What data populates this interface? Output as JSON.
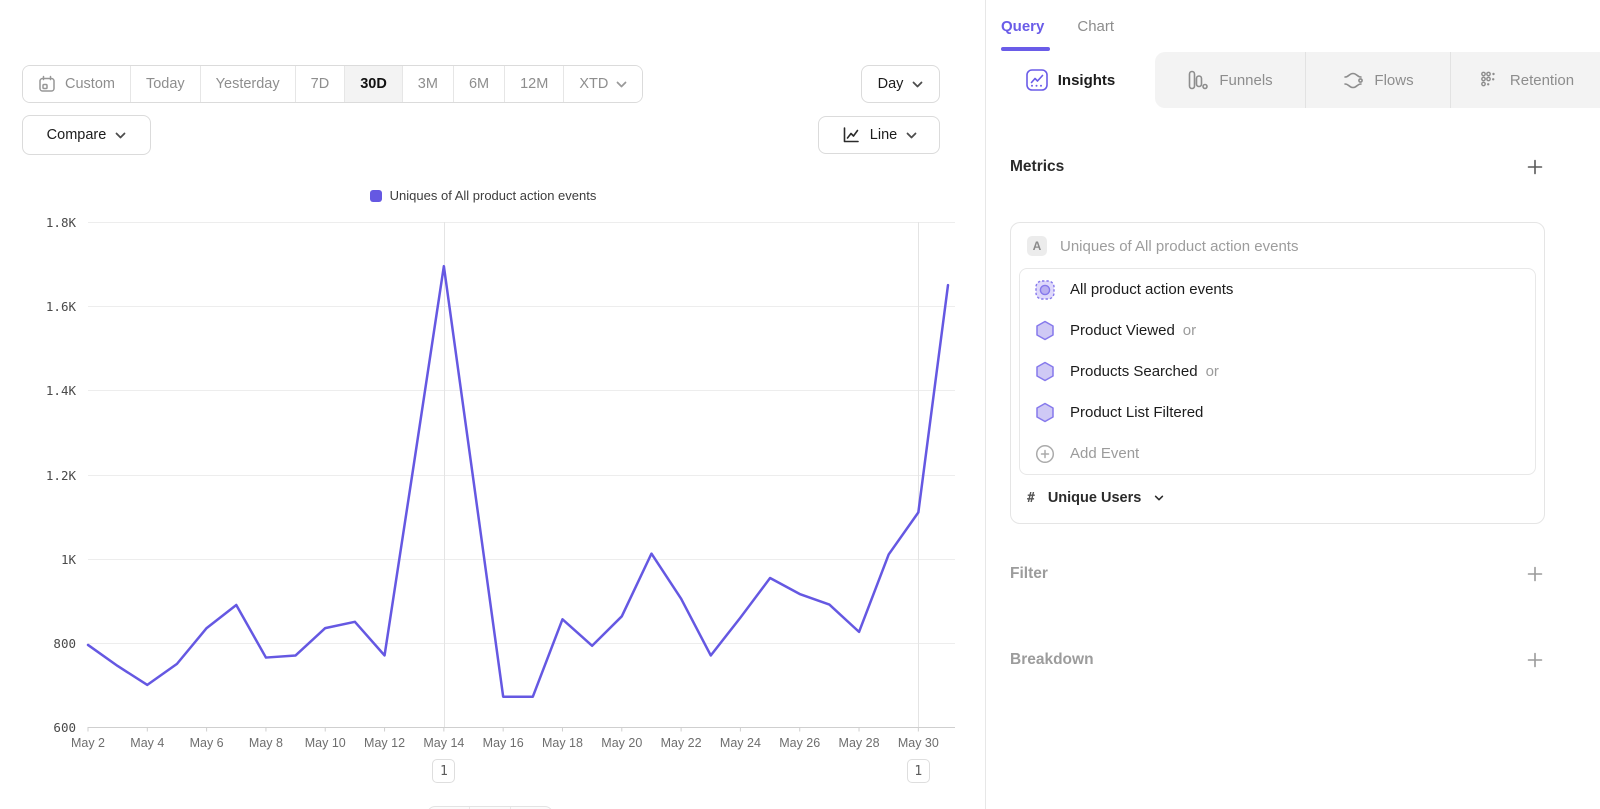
{
  "toolbar": {
    "ranges": [
      {
        "label": "Custom"
      },
      {
        "label": "Today"
      },
      {
        "label": "Yesterday"
      },
      {
        "label": "7D"
      },
      {
        "label": "30D",
        "active": true
      },
      {
        "label": "3M"
      },
      {
        "label": "6M"
      },
      {
        "label": "12M"
      },
      {
        "label": "XTD"
      }
    ],
    "granularity": {
      "label": "Day"
    },
    "chart_type": {
      "label": "Line"
    },
    "compare": {
      "label": "Compare"
    }
  },
  "chart_data": {
    "type": "line",
    "legend": [
      {
        "label": "Uniques of All product action events",
        "color": "#6558E2"
      }
    ],
    "categories": [
      "May 2",
      "May 3",
      "May 4",
      "May 5",
      "May 6",
      "May 7",
      "May 8",
      "May 9",
      "May 10",
      "May 11",
      "May 12",
      "May 13",
      "May 14",
      "May 15",
      "May 16",
      "May 17",
      "May 18",
      "May 19",
      "May 20",
      "May 21",
      "May 22",
      "May 23",
      "May 24",
      "May 25",
      "May 26",
      "May 27",
      "May 28",
      "May 29",
      "May 30",
      "May 31"
    ],
    "values": [
      795,
      745,
      700,
      750,
      835,
      890,
      765,
      770,
      835,
      850,
      770,
      1230,
      1695,
      1185,
      672,
      672,
      856,
      793,
      863,
      1012,
      905,
      770,
      860,
      954,
      916,
      891,
      826,
      1010,
      1110,
      1650
    ],
    "ylim": [
      600,
      1800
    ],
    "yticks": [
      {
        "value": 600,
        "label": "600"
      },
      {
        "value": 800,
        "label": "800"
      },
      {
        "value": 1000,
        "label": "1K"
      },
      {
        "value": 1200,
        "label": "1.2K"
      },
      {
        "value": 1400,
        "label": "1.4K"
      },
      {
        "value": 1600,
        "label": "1.6K"
      },
      {
        "value": 1800,
        "label": "1.8K"
      }
    ],
    "xtick_every": 2,
    "vline_indices": [
      12,
      28
    ],
    "annotations": [
      {
        "index": 12,
        "label": "1"
      },
      {
        "index": 28,
        "label": "1"
      }
    ],
    "grid": true,
    "legend_position": "top-center"
  },
  "panel": {
    "tabs": [
      {
        "label": "Query",
        "active": true
      },
      {
        "label": "Chart"
      }
    ],
    "report_tabs": [
      {
        "label": "Insights",
        "active": true
      },
      {
        "label": "Funnels"
      },
      {
        "label": "Flows"
      },
      {
        "label": "Retention"
      }
    ],
    "metrics": {
      "title": "Metrics",
      "group_label": "A",
      "group_title": "Uniques of All product action events",
      "events": [
        {
          "name": "All product action events",
          "suffix": ""
        },
        {
          "name": "Product Viewed",
          "suffix": "or"
        },
        {
          "name": "Products Searched",
          "suffix": "or"
        },
        {
          "name": "Product List Filtered",
          "suffix": ""
        }
      ],
      "add_event_label": "Add Event",
      "measure": {
        "symbol": "#",
        "label": "Unique Users"
      }
    },
    "filter": {
      "title": "Filter"
    },
    "breakdown": {
      "title": "Breakdown"
    }
  },
  "colors": {
    "accent": "#6A5CE8",
    "series": "#6558E2",
    "hexagon_fill": "#CFC9F5",
    "hexagon_stroke": "#8679EC"
  }
}
